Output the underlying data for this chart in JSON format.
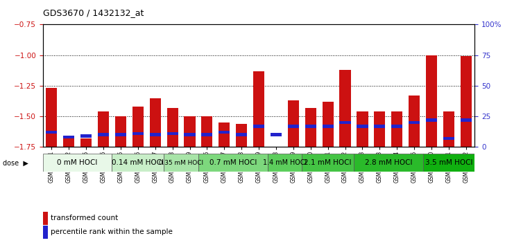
{
  "title": "GDS3670 / 1432132_at",
  "samples": [
    "GSM387601",
    "GSM387602",
    "GSM387605",
    "GSM387606",
    "GSM387645",
    "GSM387646",
    "GSM387647",
    "GSM387648",
    "GSM387649",
    "GSM387676",
    "GSM387677",
    "GSM387678",
    "GSM387679",
    "GSM387698",
    "GSM387699",
    "GSM387700",
    "GSM387701",
    "GSM387702",
    "GSM387703",
    "GSM387713",
    "GSM387714",
    "GSM387716",
    "GSM387750",
    "GSM387751",
    "GSM387752"
  ],
  "transformed_counts": [
    -1.27,
    -1.68,
    -1.68,
    -1.46,
    -1.5,
    -1.42,
    -1.35,
    -1.43,
    -1.5,
    -1.5,
    -1.55,
    -1.56,
    -1.13,
    -1.75,
    -1.37,
    -1.43,
    -1.38,
    -1.12,
    -1.46,
    -1.46,
    -1.46,
    -1.33,
    -1.0,
    -1.46,
    -1.01
  ],
  "percentile_ranks": [
    12,
    8,
    9,
    10,
    10,
    11,
    10,
    11,
    10,
    10,
    12,
    10,
    17,
    10,
    17,
    17,
    17,
    20,
    17,
    17,
    17,
    20,
    22,
    7,
    22
  ],
  "dose_groups": [
    {
      "label": "0 mM HOCl",
      "start": 0,
      "end": 4,
      "color": "#e8f8e8"
    },
    {
      "label": "0.14 mM HOCl",
      "start": 4,
      "end": 7,
      "color": "#c8eec8"
    },
    {
      "label": "0.35 mM HOCl",
      "start": 7,
      "end": 9,
      "color": "#a8e4a8"
    },
    {
      "label": "0.7 mM HOCl",
      "start": 9,
      "end": 13,
      "color": "#7dd87d"
    },
    {
      "label": "1.4 mM HOCl",
      "start": 13,
      "end": 15,
      "color": "#5cce5c"
    },
    {
      "label": "2.1 mM HOCl",
      "start": 15,
      "end": 18,
      "color": "#44c444"
    },
    {
      "label": "2.8 mM HOCl",
      "start": 18,
      "end": 22,
      "color": "#2aba2a"
    },
    {
      "label": "3.5 mM HOCl",
      "start": 22,
      "end": 25,
      "color": "#10b010"
    }
  ],
  "ylim_left": [
    -1.75,
    -0.75
  ],
  "ylim_right": [
    0,
    100
  ],
  "bar_color": "#cc1111",
  "blue_color": "#2222cc",
  "left_axis_color": "#cc1111",
  "right_axis_color": "#3333cc",
  "yticks_left": [
    -1.75,
    -1.5,
    -1.25,
    -1.0,
    -0.75
  ],
  "yticks_right": [
    0,
    25,
    50,
    75,
    100
  ]
}
